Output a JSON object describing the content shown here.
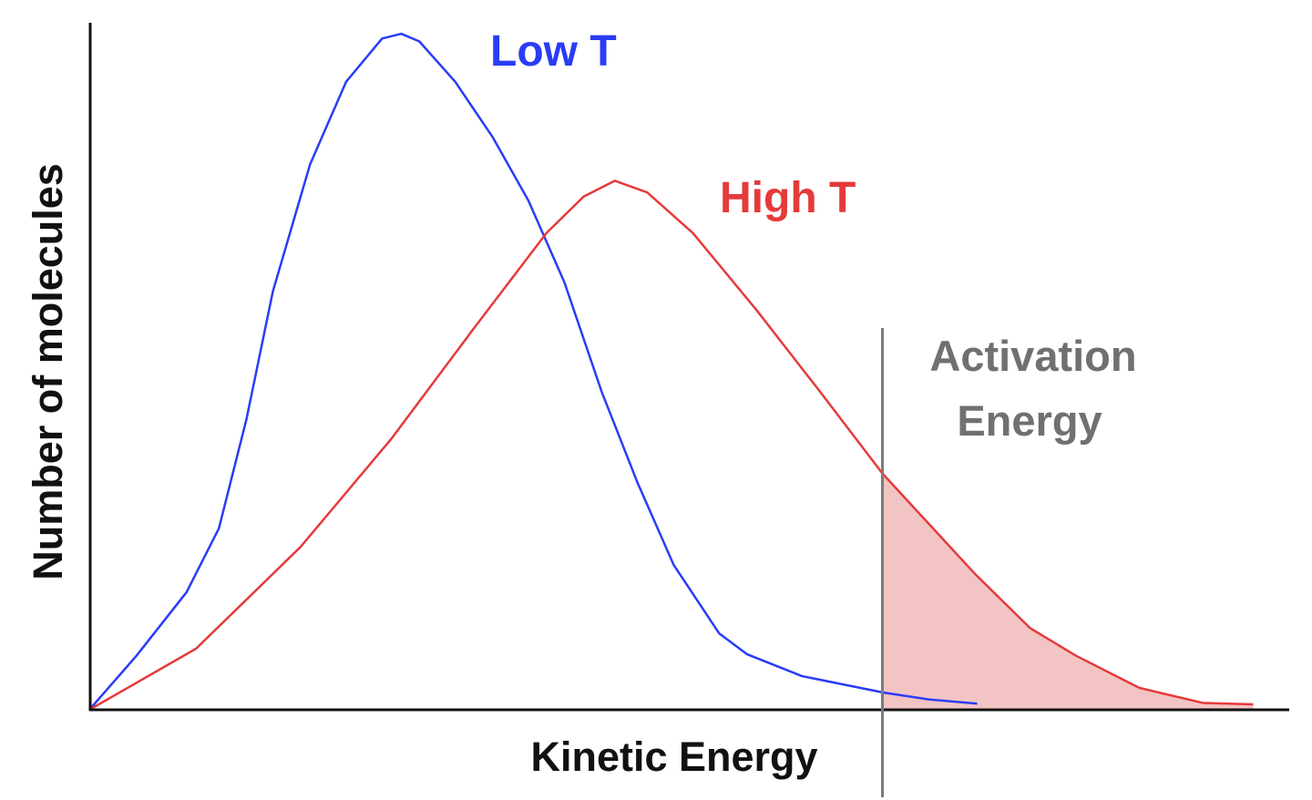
{
  "chart_data": {
    "type": "line",
    "title": "",
    "xlabel": "Kinetic Energy",
    "ylabel": "Number of molecules",
    "xlim": [
      0,
      100
    ],
    "ylim": [
      0,
      100
    ],
    "grid": false,
    "legend": "inline labels",
    "series": [
      {
        "name": "Low T",
        "color": "#2a3cf5",
        "fill_color": "#b9bdf7",
        "points": [
          [
            0,
            0
          ],
          [
            3.9,
            7.8
          ],
          [
            8.1,
            17.1
          ],
          [
            10.8,
            26.4
          ],
          [
            13.1,
            42.3
          ],
          [
            15.3,
            60.9
          ],
          [
            18.4,
            79.4
          ],
          [
            21.4,
            91.4
          ],
          [
            24.4,
            97.7
          ],
          [
            26.0,
            98.4
          ],
          [
            27.5,
            97.3
          ],
          [
            30.5,
            91.4
          ],
          [
            33.6,
            83.4
          ],
          [
            36.6,
            74.1
          ],
          [
            39.6,
            62.2
          ],
          [
            42.7,
            46.3
          ],
          [
            45.7,
            33.0
          ],
          [
            48.7,
            21.1
          ],
          [
            52.5,
            11.1
          ],
          [
            54.8,
            8.1
          ],
          [
            59.4,
            4.9
          ],
          [
            66.2,
            2.5
          ],
          [
            70.0,
            1.5
          ],
          [
            74.0,
            0.9
          ]
        ]
      },
      {
        "name": "High T",
        "color": "#e53a3a",
        "fill_color": "#f3c4c4",
        "points": [
          [
            0,
            0
          ],
          [
            8.9,
            8.9
          ],
          [
            17.6,
            23.7
          ],
          [
            25.2,
            39.5
          ],
          [
            32.0,
            55.4
          ],
          [
            38.1,
            69.4
          ],
          [
            41.2,
            74.7
          ],
          [
            43.8,
            77.0
          ],
          [
            46.5,
            75.3
          ],
          [
            50.3,
            69.4
          ],
          [
            55.6,
            58.2
          ],
          [
            60.9,
            46.3
          ],
          [
            66.1,
            34.4
          ],
          [
            73.8,
            19.8
          ],
          [
            78.4,
            11.9
          ],
          [
            82.2,
            7.9
          ],
          [
            87.5,
            3.2
          ],
          [
            92.8,
            1.0
          ],
          [
            97.0,
            0.8
          ]
        ]
      }
    ],
    "annotations": [
      {
        "type": "vline",
        "x": 66.1,
        "label": "Activation Energy",
        "label_lines": [
          "Activation",
          "Energy"
        ],
        "color": "#7a7a7a"
      }
    ]
  }
}
